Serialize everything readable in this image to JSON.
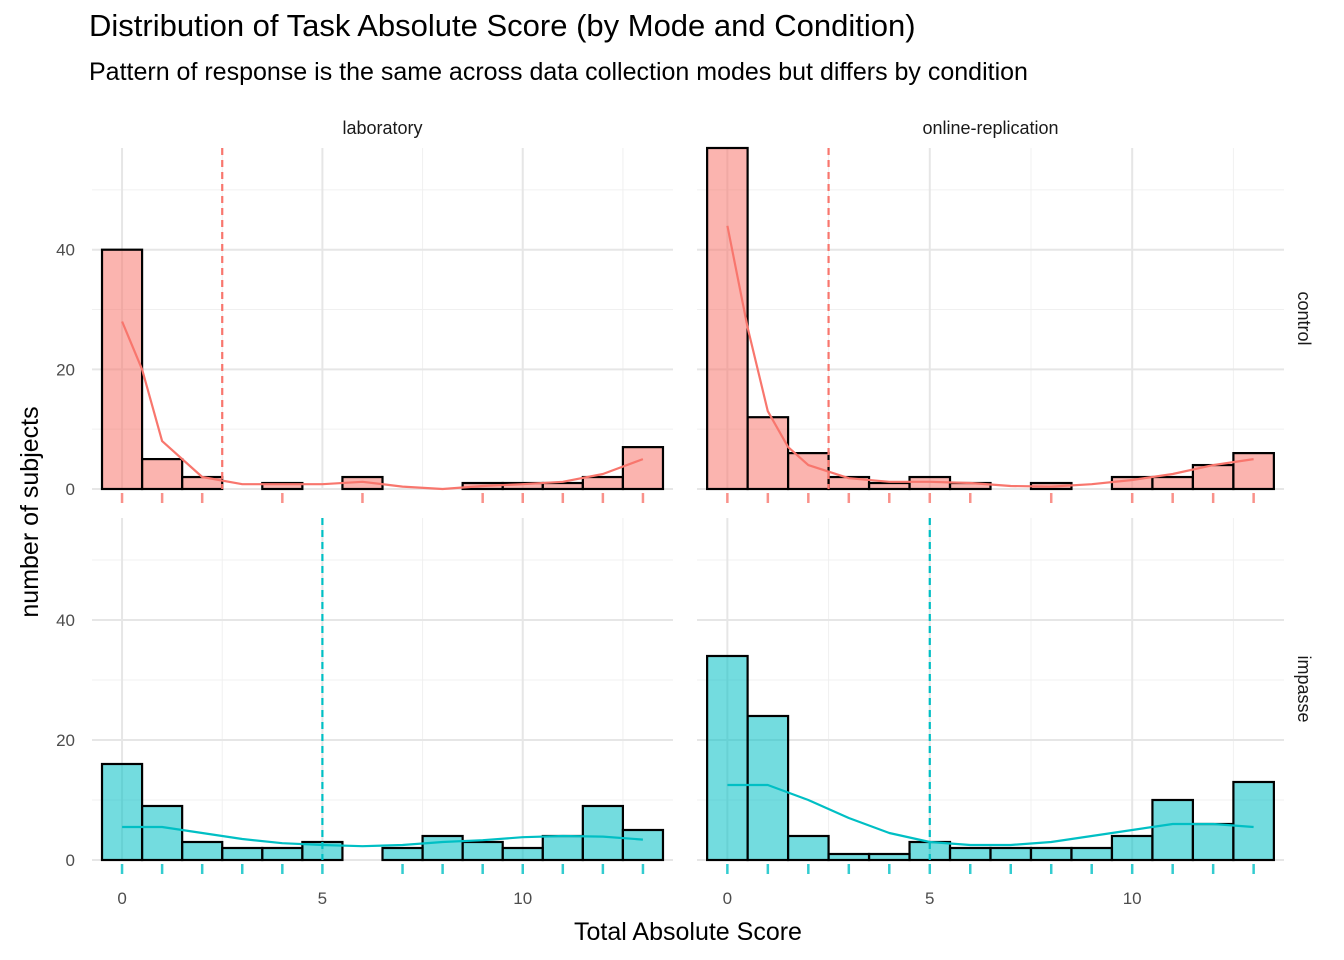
{
  "chart_data": {
    "type": "bar",
    "title": "Distribution of Task Absolute Score (by Mode and Condition)",
    "subtitle": "Pattern of response is the same across data collection modes but differs by condition",
    "xlabel": "Total Absolute Score",
    "ylabel": "number of subjects",
    "x_ticks": [
      0,
      5,
      10
    ],
    "y_ticks": [
      0,
      20,
      40
    ],
    "xlim": [
      -0.75,
      13.75
    ],
    "ylim": [
      0,
      57
    ],
    "bin_centers": [
      0,
      1,
      2,
      3,
      4,
      5,
      6,
      7,
      8,
      9,
      10,
      11,
      12,
      13
    ],
    "columns": [
      "laboratory",
      "online-replication"
    ],
    "rows": [
      "control",
      "impasse"
    ],
    "grid": true,
    "legend": "none",
    "colors": {
      "control": "#F8766D",
      "impasse": "#00BFC4"
    },
    "panels": [
      {
        "col": "laboratory",
        "row": "control",
        "mean_line": 2.5,
        "counts": [
          40,
          5,
          2,
          0,
          1,
          0,
          2,
          0,
          0,
          1,
          1,
          1,
          2,
          7
        ],
        "density": [
          [
            0,
            28
          ],
          [
            0.5,
            20
          ],
          [
            1,
            8
          ],
          [
            2,
            2
          ],
          [
            3,
            0.8
          ],
          [
            4,
            0.8
          ],
          [
            5,
            0.8
          ],
          [
            6,
            1.2
          ],
          [
            7,
            0.4
          ],
          [
            8,
            0
          ],
          [
            9,
            0.5
          ],
          [
            10,
            0.8
          ],
          [
            11,
            1.2
          ],
          [
            12,
            2.5
          ],
          [
            13,
            5
          ]
        ]
      },
      {
        "col": "online-replication",
        "row": "control",
        "mean_line": 2.5,
        "counts": [
          57,
          12,
          6,
          2,
          1,
          2,
          1,
          0,
          1,
          0,
          2,
          2,
          4,
          6
        ],
        "density": [
          [
            0,
            44
          ],
          [
            0.5,
            27
          ],
          [
            1,
            13
          ],
          [
            1.5,
            7
          ],
          [
            2,
            4
          ],
          [
            3,
            1.8
          ],
          [
            4,
            1.2
          ],
          [
            5,
            1.2
          ],
          [
            6,
            1
          ],
          [
            7,
            0.5
          ],
          [
            8,
            0.4
          ],
          [
            9,
            0.8
          ],
          [
            10,
            1.5
          ],
          [
            11,
            2.5
          ],
          [
            12,
            4
          ],
          [
            13,
            5
          ]
        ]
      },
      {
        "col": "laboratory",
        "row": "impasse",
        "mean_line": 5,
        "counts": [
          16,
          9,
          3,
          2,
          2,
          3,
          0,
          2,
          4,
          3,
          2,
          4,
          9,
          5
        ],
        "density": [
          [
            0,
            5.5
          ],
          [
            1,
            5.5
          ],
          [
            2,
            4.5
          ],
          [
            3,
            3.5
          ],
          [
            4,
            2.8
          ],
          [
            5,
            2.5
          ],
          [
            6,
            2.3
          ],
          [
            7,
            2.5
          ],
          [
            8,
            3
          ],
          [
            9,
            3.3
          ],
          [
            10,
            3.8
          ],
          [
            11,
            4
          ],
          [
            12,
            3.9
          ],
          [
            13,
            3.4
          ]
        ]
      },
      {
        "col": "online-replication",
        "row": "impasse",
        "mean_line": 5,
        "counts": [
          34,
          24,
          4,
          1,
          1,
          3,
          2,
          2,
          2,
          2,
          4,
          10,
          6,
          13
        ],
        "density": [
          [
            0,
            12.5
          ],
          [
            1,
            12.5
          ],
          [
            2,
            10
          ],
          [
            3,
            7
          ],
          [
            4,
            4.5
          ],
          [
            5,
            3
          ],
          [
            6,
            2.5
          ],
          [
            7,
            2.5
          ],
          [
            8,
            3
          ],
          [
            9,
            4
          ],
          [
            10,
            5
          ],
          [
            11,
            6
          ],
          [
            12,
            6
          ],
          [
            13,
            5.5
          ]
        ]
      }
    ],
    "rugs": {
      "laboratory|control": [
        0,
        1,
        2,
        4,
        6,
        9,
        10,
        11,
        12,
        13
      ],
      "online-replication|control": [
        0,
        1,
        2,
        3,
        4,
        5,
        6,
        8,
        10,
        11,
        12,
        13
      ],
      "laboratory|impasse": [
        0,
        1,
        2,
        3,
        4,
        5,
        7,
        8,
        9,
        10,
        11,
        12,
        13
      ],
      "online-replication|impasse": [
        0,
        1,
        2,
        3,
        4,
        5,
        6,
        7,
        8,
        9,
        10,
        11,
        12,
        13
      ]
    }
  }
}
